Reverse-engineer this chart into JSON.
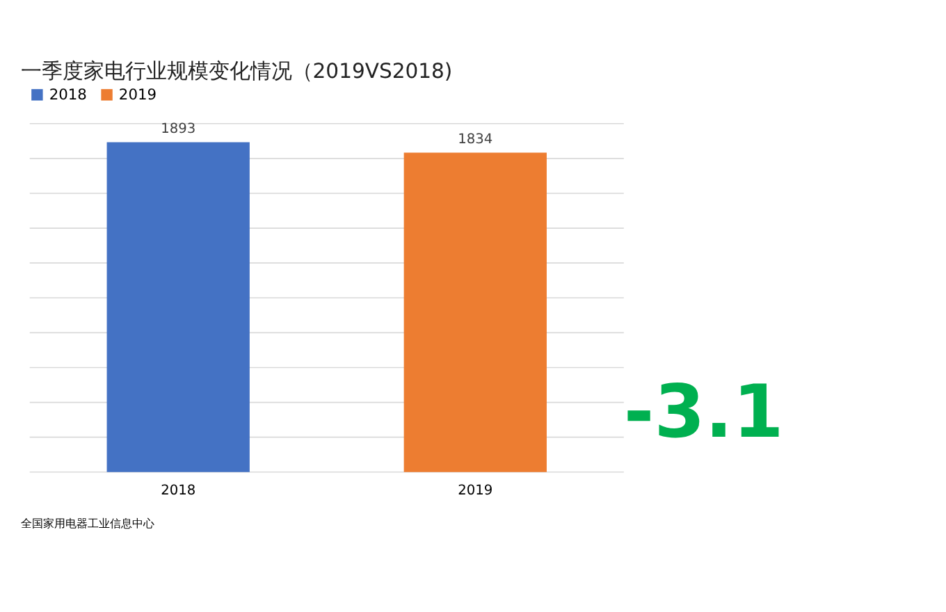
{
  "chart_data": {
    "type": "bar",
    "title": "一季度家电行业规模变化情况（2019VS2018)",
    "categories": [
      "2018",
      "2019"
    ],
    "series": [
      {
        "name": "2018",
        "color": "#4472c4",
        "values": [
          1893,
          null
        ]
      },
      {
        "name": "2019",
        "color": "#ed7d31",
        "values": [
          null,
          1834
        ]
      }
    ],
    "ylim": [
      0,
      2000
    ],
    "yticks": [
      {
        "value": 0,
        "label": null
      },
      {
        "value": 200,
        "label": null
      },
      {
        "value": 400,
        "label": null
      },
      {
        "value": 600,
        "label": null
      },
      {
        "value": 800,
        "label": null
      },
      {
        "value": 1000,
        "label": null
      },
      {
        "value": 1200,
        "label": null
      },
      {
        "value": 1400,
        "label": null
      },
      {
        "value": 1600,
        "label": null
      },
      {
        "value": 1800,
        "label": null
      },
      {
        "value": 2000,
        "label": null
      }
    ],
    "tick_labels": "x",
    "grid": "y",
    "legend": "top",
    "data_labels": true,
    "annotations": [
      "-3.1",
      "全国家用电器工业信息中心"
    ]
  }
}
